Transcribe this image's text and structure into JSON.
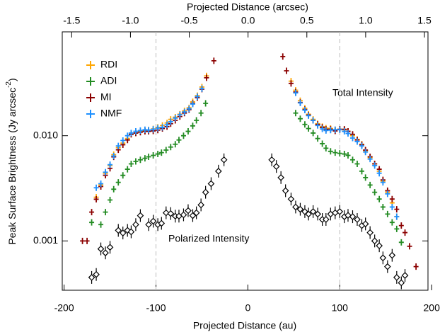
{
  "chart_data": {
    "type": "scatter",
    "xlabel": "Projected Distance (au)",
    "x2label": "Projected Distance (arcsec)",
    "ylabel": "Peak Surface Brightness (Jy arcsec",
    "ylabel_sup": "-2",
    "ylabel_end": ")",
    "xlim": [
      -202,
      196
    ],
    "xticks": [
      -200,
      -100,
      0,
      100,
      200
    ],
    "x2lim": [
      -1.58,
      1.53
    ],
    "x2ticks": [
      -1.5,
      {
        "value": -1.0,
        "label": "-1.0"
      },
      -0.5,
      {
        "value": 0,
        "label": "0.0"
      },
      0.5,
      {
        "value": 1.0,
        "label": "1.0"
      },
      1.5
    ],
    "ylim": [
      0.00034,
      0.097
    ],
    "ylog": true,
    "yticks": [
      0.001,
      {
        "value": 0.01,
        "label": "0.010"
      }
    ],
    "vlines": [
      -100,
      100
    ],
    "annotations": [
      "Total Intensity",
      "Polarized Intensity"
    ],
    "legend": "upper left",
    "series": [
      {
        "name": "RDI",
        "color": "#ffa500",
        "marker": "plus",
        "x": [
          -165,
          -160,
          -155,
          -150,
          -146,
          -141,
          -136,
          -131,
          -127,
          -122,
          -117,
          -112,
          -108,
          -103,
          -98,
          -93,
          -88,
          -84,
          -79,
          -74,
          -69,
          -64,
          -60,
          -55,
          -50,
          -45,
          47,
          52,
          57,
          62,
          66,
          71,
          76,
          81,
          85,
          90,
          95,
          100,
          105,
          109,
          114,
          119,
          124,
          128,
          133,
          138,
          143,
          147,
          152,
          157,
          162
        ],
        "values": [
          0.0026,
          0.0034,
          0.0044,
          0.0052,
          0.0066,
          0.0077,
          0.0085,
          0.0094,
          0.0104,
          0.0106,
          0.011,
          0.0111,
          0.0113,
          0.0116,
          0.012,
          0.0125,
          0.0132,
          0.0143,
          0.015,
          0.016,
          0.0172,
          0.0184,
          0.021,
          0.024,
          0.029,
          0.037,
          0.033,
          0.027,
          0.0215,
          0.0182,
          0.016,
          0.0143,
          0.013,
          0.0122,
          0.0118,
          0.0117,
          0.0114,
          0.0115,
          0.0114,
          0.011,
          0.01,
          0.0092,
          0.0083,
          0.0072,
          0.0062,
          0.0054,
          0.0046,
          0.0037,
          0.0029,
          0.0023,
          0.0017
        ]
      },
      {
        "name": "ADI",
        "color": "#228b22",
        "marker": "plus",
        "x": [
          -170,
          -160,
          -155,
          -150,
          -146,
          -141,
          -136,
          -131,
          -127,
          -122,
          -117,
          -112,
          -108,
          -103,
          -98,
          -94,
          -89,
          -84,
          -79,
          -75,
          -70,
          -65,
          -60,
          -56,
          -51,
          -46,
          52,
          57,
          62,
          66,
          71,
          76,
          81,
          85,
          90,
          95,
          100,
          105,
          109,
          114,
          119,
          124,
          128,
          133,
          138,
          143,
          147,
          152,
          157,
          162,
          167
        ],
        "values": [
          0.0015,
          0.00143,
          0.00188,
          0.00245,
          0.0031,
          0.0036,
          0.0042,
          0.0048,
          0.0054,
          0.0057,
          0.0059,
          0.0061,
          0.0063,
          0.0065,
          0.0067,
          0.0069,
          0.0073,
          0.0078,
          0.0083,
          0.0091,
          0.01,
          0.011,
          0.0124,
          0.014,
          0.0164,
          0.0203,
          0.0164,
          0.0145,
          0.0128,
          0.0117,
          0.0106,
          0.0094,
          0.0084,
          0.0076,
          0.0071,
          0.0069,
          0.0068,
          0.0067,
          0.0065,
          0.0059,
          0.0054,
          0.0046,
          0.004,
          0.0034,
          0.0029,
          0.0025,
          0.0021,
          0.0018,
          0.0015,
          0.0013,
          0.00097
        ]
      },
      {
        "name": "MI",
        "color": "#8b0000",
        "marker": "plus",
        "x": [
          -180,
          -175,
          -170,
          -165,
          -160,
          -155,
          -150,
          -146,
          -141,
          -136,
          -131,
          -127,
          -122,
          -117,
          -112,
          -108,
          -103,
          -98,
          -93,
          -88,
          -84,
          -79,
          -74,
          -69,
          -64,
          -60,
          -55,
          -50,
          -45,
          -37,
          38,
          42,
          47,
          52,
          57,
          62,
          66,
          71,
          76,
          81,
          85,
          90,
          95,
          100,
          105,
          109,
          114,
          119,
          124,
          128,
          133,
          138,
          143,
          147,
          152,
          157,
          162,
          167,
          171,
          176,
          183
        ],
        "values": [
          0.001,
          0.001,
          0.00188,
          0.00249,
          0.00329,
          0.00421,
          0.0049,
          0.00629,
          0.00734,
          0.0082,
          0.0091,
          0.0103,
          0.0106,
          0.0108,
          0.011,
          0.011,
          0.0111,
          0.0113,
          0.0117,
          0.0122,
          0.013,
          0.014,
          0.0152,
          0.0164,
          0.0177,
          0.0203,
          0.023,
          0.0277,
          0.0355,
          0.0515,
          0.0565,
          0.0414,
          0.0314,
          0.026,
          0.0207,
          0.0177,
          0.0157,
          0.014,
          0.0128,
          0.012,
          0.0115,
          0.0115,
          0.0111,
          0.0115,
          0.0115,
          0.011,
          0.0103,
          0.0091,
          0.0082,
          0.0073,
          0.0063,
          0.0054,
          0.0048,
          0.0038,
          0.003,
          0.0025,
          0.002,
          0.0014,
          0.0012,
          0.00089,
          0.00057
        ]
      },
      {
        "name": "NMF",
        "color": "#1e90ff",
        "marker": "plus",
        "x": [
          -165,
          -160,
          -155,
          -150,
          -146,
          -141,
          -136,
          -131,
          -127,
          -122,
          -117,
          -112,
          -108,
          -103,
          -98,
          -93,
          -88,
          -84,
          -79,
          -74,
          -69,
          -64,
          -60,
          -55,
          -50,
          52,
          57,
          62,
          66,
          71,
          76,
          81,
          85,
          90,
          95,
          100,
          105,
          109,
          114,
          119,
          124,
          128,
          133,
          138,
          143,
          147,
          152,
          157,
          162
        ],
        "values": [
          0.0032,
          0.0035,
          0.0045,
          0.0053,
          0.0064,
          0.008,
          0.009,
          0.01,
          0.0106,
          0.011,
          0.0112,
          0.0114,
          0.0113,
          0.0115,
          0.0118,
          0.012,
          0.0127,
          0.0136,
          0.0147,
          0.0158,
          0.0168,
          0.018,
          0.02,
          0.0235,
          0.028,
          0.0255,
          0.0205,
          0.0175,
          0.0155,
          0.014,
          0.0125,
          0.0116,
          0.0112,
          0.0113,
          0.0114,
          0.0114,
          0.011,
          0.0105,
          0.0095,
          0.0088,
          0.008,
          0.007,
          0.006,
          0.0052,
          0.0044,
          0.0036,
          0.0028,
          0.0021,
          0.0017
        ]
      },
      {
        "color": "#000000",
        "marker": "diamond",
        "x": [
          -170,
          -165,
          -160,
          -155,
          -150,
          -141,
          -136,
          -131,
          -127,
          -122,
          -117,
          -108,
          -103,
          -98,
          -94,
          -89,
          -84,
          -79,
          -75,
          -70,
          -65,
          -60,
          -56,
          -51,
          -46,
          -40,
          -32,
          -26,
          26,
          31,
          36,
          41,
          47,
          52,
          57,
          62,
          66,
          71,
          76,
          81,
          85,
          90,
          95,
          100,
          105,
          109,
          114,
          119,
          124,
          128,
          133,
          138,
          143,
          147,
          152,
          157,
          162,
          167,
          171
        ],
        "values": [
          0.00045,
          0.00048,
          0.00084,
          0.00077,
          0.00087,
          0.00126,
          0.00119,
          0.00126,
          0.00122,
          0.00143,
          0.00174,
          0.00143,
          0.00154,
          0.00143,
          0.00147,
          0.00185,
          0.00182,
          0.00172,
          0.00172,
          0.00177,
          0.00194,
          0.00174,
          0.00185,
          0.0022,
          0.0029,
          0.0035,
          0.0046,
          0.0059,
          0.0059,
          0.0051,
          0.004,
          0.003,
          0.0025,
          0.0021,
          0.002,
          0.0019,
          0.0018,
          0.0019,
          0.0018,
          0.0016,
          0.0016,
          0.0018,
          0.00185,
          0.0019,
          0.0017,
          0.00175,
          0.0017,
          0.0016,
          0.0014,
          0.00145,
          0.0012,
          0.001,
          0.0009,
          0.00069,
          0.00057,
          0.00073,
          0.00045,
          0.0004,
          0.00047
        ]
      }
    ]
  }
}
